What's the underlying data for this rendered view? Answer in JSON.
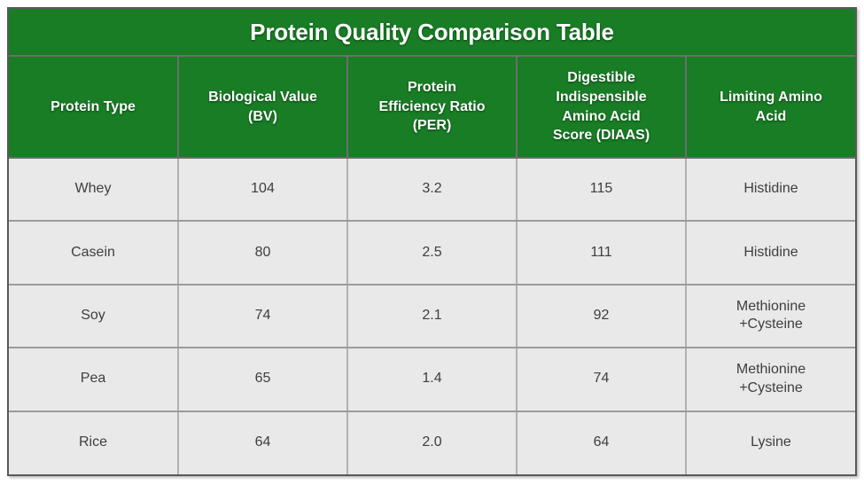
{
  "chart_data": {
    "type": "table",
    "title": "Protein Quality Comparison Table",
    "columns": [
      "Protein Type",
      "Biological Value\n(BV)",
      "Protein\nEfficiency Ratio\n(PER)",
      "Digestible\nIndispensible\nAmino Acid\nScore (DIAAS)",
      "Limiting Amino\nAcid"
    ],
    "rows": [
      [
        "Whey",
        "104",
        "3.2",
        "115",
        "Histidine"
      ],
      [
        "Casein",
        "80",
        "2.5",
        "111",
        "Histidine"
      ],
      [
        "Soy",
        "74",
        "2.1",
        "92",
        "Methionine\n+Cysteine"
      ],
      [
        "Pea",
        "65",
        "1.4",
        "74",
        "Methionine\n+Cysteine"
      ],
      [
        "Rice",
        "64",
        "2.0",
        "64",
        "Lysine"
      ]
    ]
  },
  "colors": {
    "header-green": "#187d25",
    "header-text": "#ffffff",
    "body-bg": "#e9e9e9",
    "body-text": "#3e3e3e",
    "outer-border": "#59595b",
    "header-border": "#6e6e6e",
    "body-border-v": "#b1b1b1",
    "body-border-h": "#9b9b9b"
  }
}
